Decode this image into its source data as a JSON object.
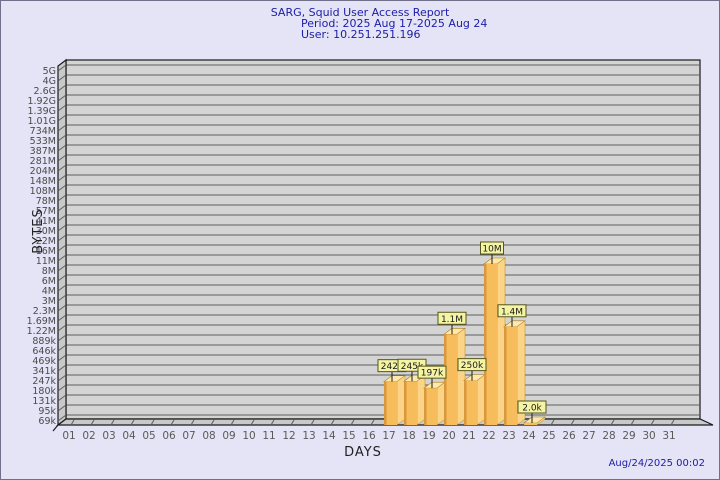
{
  "window": {
    "bg": "#E4E4F6",
    "border": "#70708A"
  },
  "header": {
    "title": "SARG, Squid User Access Report",
    "period": "Period: 2025 Aug 17-2025 Aug 24",
    "user": "User: 10.251.251.196"
  },
  "footer": {
    "timestamp": "Aug/24/2025 00:02"
  },
  "chart_data": {
    "type": "bar",
    "title": "SARG, Squid User Access Report",
    "subtitle": "Period: 2025 Aug 17-2025 Aug 24 — User: 10.251.251.196",
    "xlabel": "DAYS",
    "ylabel": "BYTES",
    "scale": "log",
    "grid": true,
    "legend": "none",
    "y_tick_labels": [
      "5G",
      "4G",
      "2.6G",
      "1.92G",
      "1.39G",
      "1.01G",
      "734M",
      "533M",
      "387M",
      "281M",
      "204M",
      "148M",
      "108M",
      "78M",
      "57M",
      "41M",
      "30M",
      "22M",
      "16M",
      "11M",
      "8M",
      "6M",
      "4M",
      "3M",
      "2.3M",
      "1.69M",
      "1.22M",
      "889k",
      "646k",
      "469k",
      "341k",
      "247k",
      "180k",
      "131k",
      "95k",
      "69k"
    ],
    "x_categories": [
      "01",
      "02",
      "03",
      "04",
      "05",
      "06",
      "07",
      "08",
      "09",
      "10",
      "11",
      "12",
      "13",
      "14",
      "15",
      "16",
      "17",
      "18",
      "19",
      "20",
      "21",
      "22",
      "23",
      "24",
      "25",
      "26",
      "27",
      "28",
      "29",
      "30",
      "31"
    ],
    "bars": [
      {
        "day": "17",
        "value_label": "242k",
        "bytes": 242000
      },
      {
        "day": "18",
        "value_label": "245k",
        "bytes": 245000
      },
      {
        "day": "19",
        "value_label": "197k",
        "bytes": 197000
      },
      {
        "day": "20",
        "value_label": "1.1M",
        "bytes": 1100000
      },
      {
        "day": "21",
        "value_label": "250k",
        "bytes": 250000
      },
      {
        "day": "22",
        "value_label": "10M",
        "bytes": 10000000
      },
      {
        "day": "23",
        "value_label": "1.4M",
        "bytes": 1400000
      },
      {
        "day": "24",
        "value_label": "2.0k",
        "bytes": 2000
      }
    ],
    "colors": {
      "plot_bg": "#D4D4D4",
      "wall_bg": "#C9C9C9",
      "grid": "#5E5E5E",
      "frame": "#1A1A1A",
      "bar_front": "#F7BC5C",
      "bar_front_edge": "#D8993E",
      "bar_side": "#FCD488",
      "bar_top": "#FFE9A8",
      "bar_outline": "#A5781F",
      "value_box_bg": "#F4F4A4",
      "value_box_border": "#55551E",
      "tick_text": "#4A4A4A",
      "day_text": "#5A5A5A",
      "title_color": "#1C1CA8"
    }
  }
}
